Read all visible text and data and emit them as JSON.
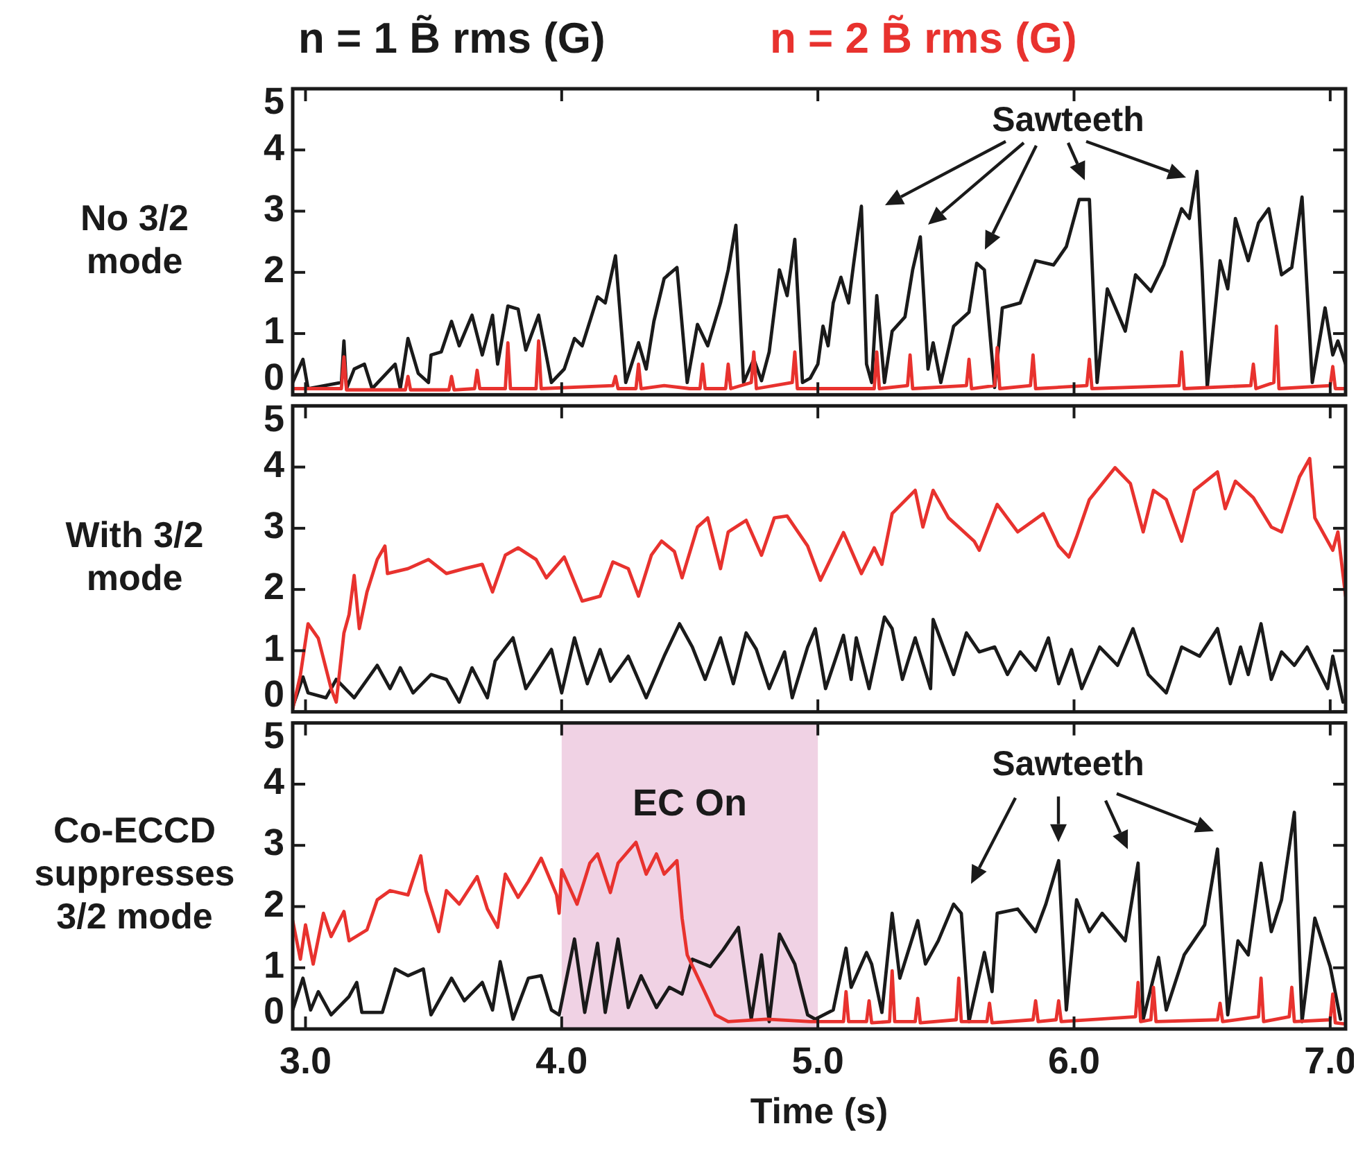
{
  "chart_data": [
    {
      "type": "line",
      "ylabel": "No 3/2\nmode",
      "legend": "top",
      "xlim": [
        2.95,
        7.06
      ],
      "xticks": [
        3,
        4,
        5,
        6,
        7
      ],
      "ylim": [
        0,
        5
      ],
      "yticks": [
        0,
        1,
        2,
        3,
        4,
        5
      ],
      "tick_labels": "y",
      "annotations": [
        "Sawteeth"
      ],
      "series": [
        {
          "name": "n = 1 B̃ rms (G)",
          "color": "#1a1a1a",
          "x": [
            2.95,
            2.99,
            3.01,
            3.14,
            3.15,
            3.16,
            3.19,
            3.23,
            3.26,
            3.35,
            3.37,
            3.4,
            3.44,
            3.48,
            3.49,
            3.53,
            3.57,
            3.6,
            3.65,
            3.69,
            3.73,
            3.75,
            3.79,
            3.83,
            3.86,
            3.91,
            3.96,
            4.01,
            4.05,
            4.08,
            4.14,
            4.17,
            4.21,
            4.25,
            4.3,
            4.33,
            4.36,
            4.4,
            4.45,
            4.49,
            4.53,
            4.57,
            4.62,
            4.65,
            4.68,
            4.71,
            4.75,
            4.78,
            4.81,
            4.85,
            4.88,
            4.91,
            4.94,
            4.97,
            5.0,
            5.02,
            5.04,
            5.06,
            5.09,
            5.12,
            5.14,
            5.17,
            5.19,
            5.21,
            5.23,
            5.26,
            5.29,
            5.34,
            5.37,
            5.4,
            5.43,
            5.45,
            5.48,
            5.53,
            5.59,
            5.62,
            5.65,
            5.69,
            5.72,
            5.79,
            5.85,
            5.92,
            5.97,
            6.02,
            6.06,
            6.09,
            6.13,
            6.2,
            6.24,
            6.3,
            6.35,
            6.42,
            6.45,
            6.48,
            6.5,
            6.52,
            6.57,
            6.6,
            6.63,
            6.68,
            6.72,
            6.76,
            6.81,
            6.85,
            6.89,
            6.93,
            6.98,
            7.01,
            7.03,
            7.06
          ],
          "values": [
            0.2,
            0.58,
            0.1,
            0.2,
            0.88,
            0.1,
            0.42,
            0.5,
            0.1,
            0.5,
            0.1,
            0.92,
            0.35,
            0.2,
            0.65,
            0.7,
            1.2,
            0.8,
            1.3,
            0.65,
            1.3,
            0.5,
            1.45,
            1.4,
            0.73,
            1.3,
            0.2,
            0.42,
            0.92,
            0.8,
            1.6,
            1.5,
            2.27,
            0.2,
            0.85,
            0.42,
            1.2,
            1.9,
            2.08,
            0.2,
            1.15,
            0.8,
            1.5,
            2.04,
            2.77,
            0.2,
            0.58,
            0.23,
            0.7,
            2.04,
            1.62,
            2.54,
            0.2,
            0.27,
            0.5,
            1.12,
            0.8,
            1.5,
            1.92,
            1.5,
            2.15,
            3.08,
            0.5,
            0.2,
            1.62,
            0.2,
            1.04,
            1.27,
            2.04,
            2.58,
            0.42,
            0.85,
            0.2,
            1.12,
            1.35,
            2.15,
            2.04,
            0.12,
            1.42,
            1.5,
            2.19,
            2.12,
            2.42,
            3.19,
            3.19,
            0.2,
            1.73,
            1.04,
            1.96,
            1.69,
            2.12,
            3.04,
            2.88,
            3.65,
            2.04,
            0.12,
            2.19,
            1.73,
            2.88,
            2.19,
            2.81,
            3.04,
            1.96,
            2.08,
            3.23,
            0.2,
            1.42,
            0.65,
            0.88,
            0.5
          ]
        },
        {
          "name": "n = 2 B̃ rms (G)",
          "color": "#e8322e",
          "x": [
            2.95,
            3.14,
            3.15,
            3.16,
            3.39,
            3.4,
            3.41,
            3.56,
            3.57,
            3.58,
            3.66,
            3.67,
            3.68,
            3.78,
            3.79,
            3.8,
            3.9,
            3.91,
            3.92,
            4.2,
            4.21,
            4.22,
            4.29,
            4.3,
            4.31,
            4.4,
            4.5,
            4.54,
            4.55,
            4.56,
            4.64,
            4.65,
            4.66,
            4.74,
            4.75,
            4.76,
            4.9,
            4.91,
            4.92,
            5.22,
            5.23,
            5.24,
            5.35,
            5.36,
            5.37,
            5.58,
            5.59,
            5.6,
            5.69,
            5.7,
            5.71,
            5.83,
            5.84,
            5.85,
            6.05,
            6.06,
            6.07,
            6.41,
            6.42,
            6.43,
            6.69,
            6.7,
            6.71,
            6.78,
            6.79,
            6.8,
            7.0,
            7.01,
            7.02,
            7.06
          ],
          "values": [
            0.1,
            0.1,
            0.62,
            0.08,
            0.08,
            0.3,
            0.08,
            0.08,
            0.3,
            0.08,
            0.1,
            0.4,
            0.1,
            0.1,
            0.85,
            0.1,
            0.1,
            0.88,
            0.1,
            0.15,
            0.3,
            0.1,
            0.1,
            0.5,
            0.1,
            0.15,
            0.1,
            0.1,
            0.5,
            0.1,
            0.1,
            0.5,
            0.1,
            0.2,
            0.7,
            0.1,
            0.2,
            0.7,
            0.1,
            0.1,
            0.7,
            0.1,
            0.15,
            0.65,
            0.1,
            0.15,
            0.58,
            0.1,
            0.15,
            0.77,
            0.1,
            0.15,
            0.65,
            0.1,
            0.15,
            0.58,
            0.1,
            0.15,
            0.7,
            0.1,
            0.15,
            0.5,
            0.1,
            0.2,
            1.12,
            0.1,
            0.15,
            0.46,
            0.1,
            0.1
          ]
        }
      ]
    },
    {
      "type": "line",
      "ylabel": "With 3/2\nmode",
      "xlim": [
        2.95,
        7.06
      ],
      "xticks": [
        3,
        4,
        5,
        6,
        7
      ],
      "ylim": [
        0,
        5
      ],
      "yticks": [
        0,
        1,
        2,
        3,
        4,
        5
      ],
      "tick_labels": "y",
      "series": [
        {
          "color": "#1a1a1a",
          "x": [
            2.95,
            2.99,
            3.01,
            3.08,
            3.12,
            3.19,
            3.28,
            3.33,
            3.37,
            3.42,
            3.49,
            3.55,
            3.6,
            3.65,
            3.71,
            3.74,
            3.81,
            3.86,
            3.96,
            4.0,
            4.05,
            4.1,
            4.15,
            4.19,
            4.26,
            4.33,
            4.4,
            4.46,
            4.51,
            4.56,
            4.62,
            4.67,
            4.72,
            4.76,
            4.81,
            4.87,
            4.9,
            4.96,
            4.99,
            5.03,
            5.1,
            5.13,
            5.15,
            5.2,
            5.26,
            5.29,
            5.33,
            5.38,
            5.44,
            5.45,
            5.53,
            5.58,
            5.63,
            5.69,
            5.74,
            5.79,
            5.85,
            5.9,
            5.94,
            5.99,
            6.03,
            6.1,
            6.17,
            6.23,
            6.29,
            6.36,
            6.42,
            6.49,
            6.56,
            6.61,
            6.65,
            6.68,
            6.73,
            6.77,
            6.81,
            6.86,
            6.91,
            6.99,
            7.01,
            7.05
          ],
          "values": [
            0.08,
            0.57,
            0.31,
            0.23,
            0.53,
            0.23,
            0.76,
            0.38,
            0.72,
            0.31,
            0.61,
            0.53,
            0.16,
            0.72,
            0.23,
            0.83,
            1.21,
            0.38,
            1.02,
            0.31,
            1.21,
            0.46,
            1.02,
            0.5,
            0.91,
            0.23,
            0.91,
            1.44,
            1.06,
            0.53,
            1.21,
            0.46,
            1.29,
            1.02,
            0.38,
            0.98,
            0.23,
            1.06,
            1.36,
            0.38,
            1.25,
            0.53,
            1.21,
            0.38,
            1.55,
            1.36,
            0.53,
            1.21,
            0.38,
            1.51,
            0.61,
            1.29,
            0.98,
            1.06,
            0.61,
            0.98,
            0.68,
            1.21,
            0.46,
            1.02,
            0.38,
            1.06,
            0.76,
            1.36,
            0.61,
            0.31,
            1.06,
            0.91,
            1.36,
            0.46,
            1.06,
            0.61,
            1.44,
            0.53,
            0.98,
            0.76,
            1.06,
            0.38,
            0.91,
            0.16
          ]
        },
        {
          "color": "#e8322e",
          "x": [
            2.95,
            2.98,
            3.01,
            3.05,
            3.1,
            3.12,
            3.15,
            3.17,
            3.19,
            3.21,
            3.24,
            3.28,
            3.31,
            3.32,
            3.4,
            3.48,
            3.55,
            3.62,
            3.69,
            3.73,
            3.78,
            3.83,
            3.9,
            3.94,
            4.01,
            4.08,
            4.15,
            4.2,
            4.26,
            4.3,
            4.35,
            4.39,
            4.44,
            4.47,
            4.53,
            4.57,
            4.62,
            4.65,
            4.72,
            4.78,
            4.83,
            4.88,
            4.96,
            5.01,
            5.1,
            5.17,
            5.22,
            5.25,
            5.29,
            5.38,
            5.41,
            5.45,
            5.51,
            5.61,
            5.63,
            5.7,
            5.78,
            5.88,
            5.94,
            5.98,
            6.01,
            6.06,
            6.16,
            6.22,
            6.27,
            6.31,
            6.36,
            6.42,
            6.47,
            6.56,
            6.59,
            6.63,
            6.7,
            6.77,
            6.81,
            6.88,
            6.92,
            6.94,
            7.01,
            7.03,
            7.06
          ],
          "values": [
            0.05,
            0.6,
            1.44,
            1.2,
            0.38,
            0.16,
            1.29,
            1.59,
            2.23,
            1.36,
            1.96,
            2.49,
            2.71,
            2.26,
            2.34,
            2.49,
            2.26,
            2.34,
            2.41,
            1.96,
            2.56,
            2.68,
            2.49,
            2.19,
            2.53,
            1.81,
            1.89,
            2.45,
            2.34,
            1.89,
            2.56,
            2.79,
            2.62,
            2.19,
            3.02,
            3.17,
            2.34,
            2.94,
            3.13,
            2.56,
            3.17,
            3.2,
            2.71,
            2.15,
            2.93,
            2.26,
            2.68,
            2.41,
            3.24,
            3.62,
            3.02,
            3.62,
            3.17,
            2.79,
            2.64,
            3.39,
            2.94,
            3.24,
            2.71,
            2.53,
            2.86,
            3.47,
            3.99,
            3.73,
            2.94,
            3.62,
            3.47,
            2.79,
            3.62,
            3.92,
            3.32,
            3.77,
            3.5,
            3.02,
            2.94,
            3.84,
            4.14,
            3.17,
            2.64,
            2.94,
            1.89
          ]
        }
      ]
    },
    {
      "type": "line",
      "ylabel": "Co-ECCD\nsuppresses\n3/2 mode",
      "xlabel": "Time (s)",
      "xlim": [
        2.95,
        7.06
      ],
      "xticks": [
        {
          "value": 3,
          "label": "3.0"
        },
        {
          "value": 4,
          "label": "4.0"
        },
        {
          "value": 5,
          "label": "5.0"
        },
        {
          "value": 6,
          "label": "6.0"
        },
        {
          "value": 7,
          "label": "7.0"
        }
      ],
      "ylim": [
        0,
        5
      ],
      "yticks": [
        0,
        1,
        2,
        3,
        4,
        5
      ],
      "annotations": [
        "Sawteeth"
      ],
      "bands": [
        {
          "axis": "x",
          "from": 4,
          "to": 5,
          "label": "EC On",
          "color": "#f0d2e4"
        }
      ],
      "series": [
        {
          "color": "#1a1a1a",
          "x": [
            2.95,
            2.99,
            3.02,
            3.05,
            3.1,
            3.17,
            3.2,
            3.22,
            3.3,
            3.35,
            3.4,
            3.46,
            3.49,
            3.57,
            3.62,
            3.69,
            3.73,
            3.76,
            3.81,
            3.87,
            3.92,
            3.96,
            3.99,
            4.05,
            4.09,
            4.14,
            4.17,
            4.22,
            4.26,
            4.31,
            4.37,
            4.42,
            4.47,
            4.51,
            4.58,
            4.63,
            4.69,
            4.74,
            4.78,
            4.81,
            4.85,
            4.91,
            4.96,
            4.99,
            5.06,
            5.11,
            5.13,
            5.19,
            5.21,
            5.25,
            5.29,
            5.32,
            5.39,
            5.42,
            5.47,
            5.53,
            5.56,
            5.59,
            5.65,
            5.68,
            5.7,
            5.78,
            5.85,
            5.89,
            5.94,
            5.97,
            6.01,
            6.06,
            6.11,
            6.2,
            6.25,
            6.27,
            6.33,
            6.36,
            6.43,
            6.51,
            6.56,
            6.6,
            6.64,
            6.68,
            6.73,
            6.77,
            6.81,
            6.86,
            6.89,
            6.94,
            7.0,
            7.04
          ],
          "values": [
            0.31,
            0.83,
            0.31,
            0.61,
            0.23,
            0.53,
            0.76,
            0.27,
            0.27,
            0.98,
            0.87,
            0.98,
            0.23,
            0.83,
            0.46,
            0.76,
            0.31,
            1.1,
            0.16,
            0.83,
            0.87,
            0.31,
            0.23,
            1.47,
            0.27,
            1.4,
            0.27,
            1.47,
            0.35,
            0.87,
            0.35,
            0.68,
            0.57,
            1.14,
            1.02,
            1.29,
            1.66,
            0.16,
            1.21,
            0.12,
            1.55,
            1.06,
            0.23,
            0.16,
            0.31,
            1.32,
            0.68,
            1.25,
            1.06,
            0.27,
            1.89,
            0.83,
            1.77,
            1.06,
            1.44,
            2.04,
            1.89,
            0.12,
            1.25,
            0.61,
            1.89,
            1.96,
            1.59,
            2.04,
            2.75,
            0.31,
            2.11,
            1.59,
            1.89,
            1.44,
            2.71,
            0.16,
            1.17,
            0.31,
            1.21,
            1.7,
            2.94,
            0.23,
            1.44,
            1.21,
            2.71,
            1.59,
            2.11,
            3.54,
            0.12,
            1.81,
            1.02,
            0.16
          ]
        },
        {
          "color": "#e8322e",
          "x": [
            2.95,
            2.98,
            3.0,
            3.03,
            3.07,
            3.1,
            3.15,
            3.17,
            3.24,
            3.28,
            3.33,
            3.4,
            3.45,
            3.47,
            3.52,
            3.55,
            3.6,
            3.67,
            3.71,
            3.75,
            3.78,
            3.83,
            3.87,
            3.92,
            3.98,
            3.99,
            4.0,
            4.06,
            4.11,
            4.14,
            4.19,
            4.22,
            4.29,
            4.33,
            4.37,
            4.4,
            4.45,
            4.47,
            4.49,
            4.55,
            4.6,
            4.65,
            4.8,
            4.97,
            5.1,
            5.11,
            5.12,
            5.19,
            5.2,
            5.21,
            5.28,
            5.29,
            5.3,
            5.38,
            5.39,
            5.4,
            5.54,
            5.55,
            5.56,
            5.66,
            5.67,
            5.68,
            5.84,
            5.85,
            5.86,
            5.93,
            5.94,
            5.95,
            6.24,
            6.25,
            6.26,
            6.3,
            6.31,
            6.32,
            6.56,
            6.57,
            6.58,
            6.72,
            6.73,
            6.74,
            6.84,
            6.85,
            6.86,
            7.0,
            7.01,
            7.02,
            7.06
          ],
          "values": [
            1.77,
            1.14,
            1.7,
            1.06,
            1.89,
            1.51,
            1.92,
            1.44,
            1.62,
            2.11,
            2.26,
            2.19,
            2.83,
            2.26,
            1.59,
            2.26,
            2.04,
            2.49,
            1.96,
            1.66,
            2.53,
            2.15,
            2.41,
            2.79,
            2.19,
            1.89,
            2.6,
            2.04,
            2.71,
            2.86,
            2.23,
            2.71,
            3.05,
            2.53,
            2.86,
            2.53,
            2.75,
            1.81,
            1.21,
            0.68,
            0.23,
            0.12,
            0.16,
            0.12,
            0.12,
            0.61,
            0.12,
            0.12,
            0.46,
            0.1,
            0.12,
            0.95,
            0.12,
            0.12,
            0.5,
            0.1,
            0.15,
            0.83,
            0.12,
            0.12,
            0.42,
            0.1,
            0.15,
            0.46,
            0.12,
            0.15,
            0.46,
            0.12,
            0.2,
            0.76,
            0.12,
            0.15,
            0.68,
            0.12,
            0.15,
            0.42,
            0.12,
            0.2,
            0.83,
            0.12,
            0.2,
            0.68,
            0.12,
            0.15,
            0.57,
            0.1,
            0.08
          ]
        }
      ]
    }
  ]
}
